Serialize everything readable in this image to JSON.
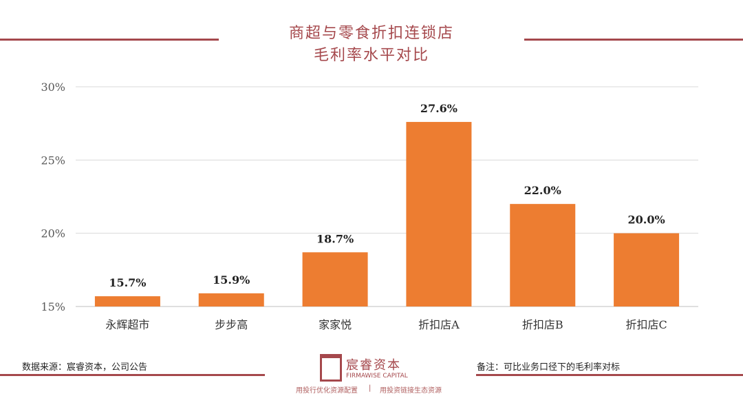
{
  "title_line1": "商超与零食折扣连锁店",
  "title_line2": "毛利率水平对比",
  "chart_data": {
    "type": "bar",
    "categories": [
      "永辉超市",
      "步步高",
      "家家悦",
      "折扣店A",
      "折扣店B",
      "折扣店C"
    ],
    "values": [
      15.7,
      15.9,
      18.7,
      27.6,
      22.0,
      20.0
    ],
    "data_labels": [
      "15.7%",
      "15.9%",
      "18.7%",
      "27.6%",
      "22.0%",
      "20.0%"
    ],
    "ylim": [
      15,
      30
    ],
    "yticks": [
      15,
      20,
      25,
      30
    ],
    "ytick_labels": [
      "15%",
      "20%",
      "25%",
      "30%"
    ],
    "grid": true,
    "bar_color": "#ed7d31"
  },
  "footer": {
    "source": "数据来源：宸睿资本，公司公告",
    "note": "备注：可比业务口径下的毛利率对标",
    "logo_cn": "宸睿资本",
    "logo_en": "FIRMAWISE CAPITAL",
    "tagline_left": "用投行优化资源配置",
    "tagline_right": "用投资链接生态资源"
  },
  "accent_color": "#a5484c"
}
